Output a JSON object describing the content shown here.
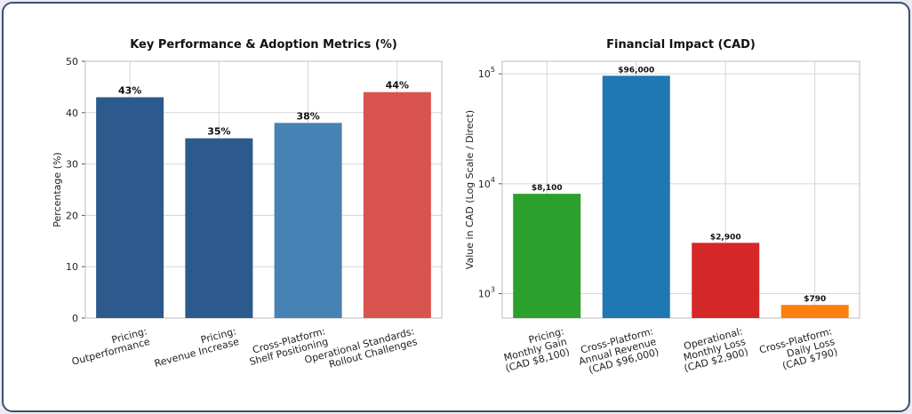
{
  "chart_data": [
    {
      "type": "bar",
      "title": "Key Performance & Adoption Metrics (%)",
      "ylabel": "Percentage (%)",
      "ylim": [
        0,
        50
      ],
      "yticks": [
        0,
        10,
        20,
        30,
        40,
        50
      ],
      "grid": true,
      "categories": [
        [
          "Pricing:",
          "Outperformance"
        ],
        [
          "Pricing:",
          "Revenue Increase"
        ],
        [
          "Cross-Platform:",
          "Shelf Positioning"
        ],
        [
          "Operational Standards:",
          "Rollout Challenges"
        ]
      ],
      "values": [
        43,
        35,
        38,
        44
      ],
      "value_labels": [
        "43%",
        "35%",
        "38%",
        "44%"
      ],
      "colors": [
        "#2c5a8c",
        "#2c5a8c",
        "#4682b4",
        "#d9534f"
      ]
    },
    {
      "type": "bar",
      "title": "Financial Impact (CAD)",
      "ylabel": "Value in CAD (Log Scale / Direct)",
      "yscale": "log",
      "ylim": [
        600,
        130000
      ],
      "yticks": [
        {
          "value": 1000,
          "base": "10",
          "exp": "3"
        },
        {
          "value": 10000,
          "base": "10",
          "exp": "4"
        },
        {
          "value": 100000,
          "base": "10",
          "exp": "5"
        }
      ],
      "grid": true,
      "categories": [
        [
          "Pricing:",
          "Monthly Gain",
          "(CAD $8,100)"
        ],
        [
          "Cross-Platform:",
          "Annual Revenue",
          "(CAD $96,000)"
        ],
        [
          "Operational:",
          "Monthly Loss",
          "(CAD $2,900)"
        ],
        [
          "Cross-Platform:",
          "Daily Loss",
          "(CAD $790)"
        ]
      ],
      "values": [
        8100,
        96000,
        2900,
        790
      ],
      "value_labels": [
        "$8,100",
        "$96,000",
        "$2,900",
        "$790"
      ],
      "colors": [
        "#2ca02c",
        "#1f77b4",
        "#d62728",
        "#ff7f0e"
      ]
    }
  ]
}
